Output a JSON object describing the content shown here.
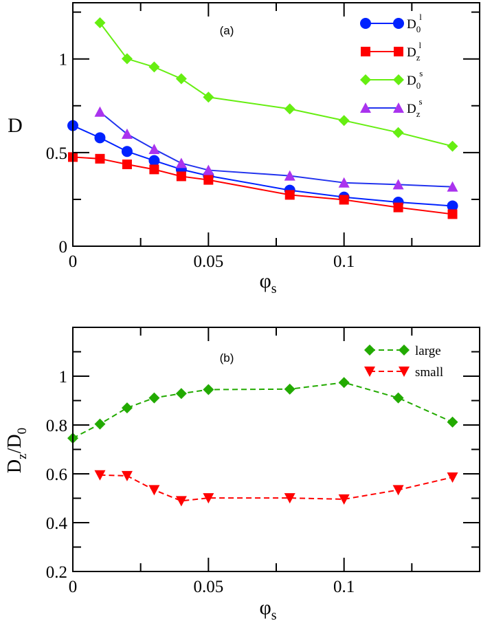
{
  "chart_data": [
    {
      "type": "line",
      "panel_label": "(a)",
      "xlabel": "φ",
      "xlabel_sub": "s",
      "ylabel": "D",
      "xlim": [
        0,
        0.15
      ],
      "ylim": [
        0,
        1.3
      ],
      "xticks": [
        "0",
        "0.05",
        "0.1"
      ],
      "xtick_values": [
        0,
        0.05,
        0.1
      ],
      "yticks": [
        "0",
        "0.5",
        "1"
      ],
      "ytick_values": [
        0,
        0.5,
        1
      ],
      "legend_position": "top-right",
      "grid": false,
      "series": [
        {
          "name": "D",
          "name_sub": "0",
          "name_sup": "l",
          "marker": "circle",
          "color": "#0022ff",
          "line": "solid",
          "x": [
            0,
            0.01,
            0.02,
            0.03,
            0.04,
            0.05,
            0.08,
            0.1,
            0.12,
            0.14
          ],
          "y": [
            0.644,
            0.579,
            0.506,
            0.457,
            0.41,
            0.376,
            0.299,
            0.262,
            0.235,
            0.215
          ]
        },
        {
          "name": "D",
          "name_sub": "z",
          "name_sup": "l",
          "marker": "square",
          "color": "#ff0000",
          "line": "solid",
          "x": [
            0,
            0.01,
            0.02,
            0.03,
            0.04,
            0.05,
            0.08,
            0.1,
            0.12,
            0.14
          ],
          "y": [
            0.476,
            0.467,
            0.437,
            0.41,
            0.373,
            0.354,
            0.274,
            0.248,
            0.207,
            0.171
          ]
        },
        {
          "name": "D",
          "name_sub": "0",
          "name_sup": "s",
          "marker": "diamond",
          "color": "#66ee11",
          "line": "solid",
          "x": [
            0.01,
            0.02,
            0.03,
            0.04,
            0.05,
            0.08,
            0.1,
            0.12,
            0.14
          ],
          "y": [
            1.193,
            1.001,
            0.957,
            0.894,
            0.796,
            0.733,
            0.671,
            0.607,
            0.534
          ]
        },
        {
          "name": "D",
          "name_sub": "z",
          "name_sup": "s",
          "marker": "triangle-up",
          "color": "#aa33ee",
          "line_color": "#2233ee",
          "line": "solid",
          "x": [
            0.01,
            0.02,
            0.03,
            0.04,
            0.05,
            0.08,
            0.1,
            0.12,
            0.14
          ],
          "y": [
            0.717,
            0.599,
            0.518,
            0.443,
            0.406,
            0.376,
            0.339,
            0.329,
            0.317
          ]
        }
      ]
    },
    {
      "type": "line",
      "panel_label": "(b)",
      "xlabel": "φ",
      "xlabel_sub": "s",
      "ylabel": "D",
      "ylabel_sub1": "z",
      "ylabel_mid": "/D",
      "ylabel_sub2": "0",
      "xlim": [
        0,
        0.15
      ],
      "ylim": [
        0.2,
        1.2
      ],
      "xticks": [
        "0",
        "0.05",
        "0.1"
      ],
      "xtick_values": [
        0,
        0.05,
        0.1
      ],
      "yticks": [
        "0.2",
        "0.4",
        "0.6",
        "0.8",
        "1"
      ],
      "ytick_values": [
        0.2,
        0.4,
        0.6,
        0.8,
        1
      ],
      "legend_position": "top-right",
      "grid": false,
      "series": [
        {
          "name": "large",
          "marker": "diamond",
          "color": "#22aa00",
          "line": "dashed",
          "x": [
            0,
            0.01,
            0.02,
            0.03,
            0.04,
            0.05,
            0.08,
            0.1,
            0.12,
            0.14
          ],
          "y": [
            0.746,
            0.804,
            0.87,
            0.911,
            0.929,
            0.945,
            0.947,
            0.974,
            0.911,
            0.812
          ]
        },
        {
          "name": "small",
          "marker": "triangle-down",
          "color": "#ff0000",
          "line": "dashed",
          "x": [
            0.01,
            0.02,
            0.03,
            0.04,
            0.05,
            0.08,
            0.1,
            0.12,
            0.14
          ],
          "y": [
            0.595,
            0.592,
            0.534,
            0.489,
            0.501,
            0.501,
            0.496,
            0.534,
            0.586
          ]
        }
      ]
    }
  ]
}
